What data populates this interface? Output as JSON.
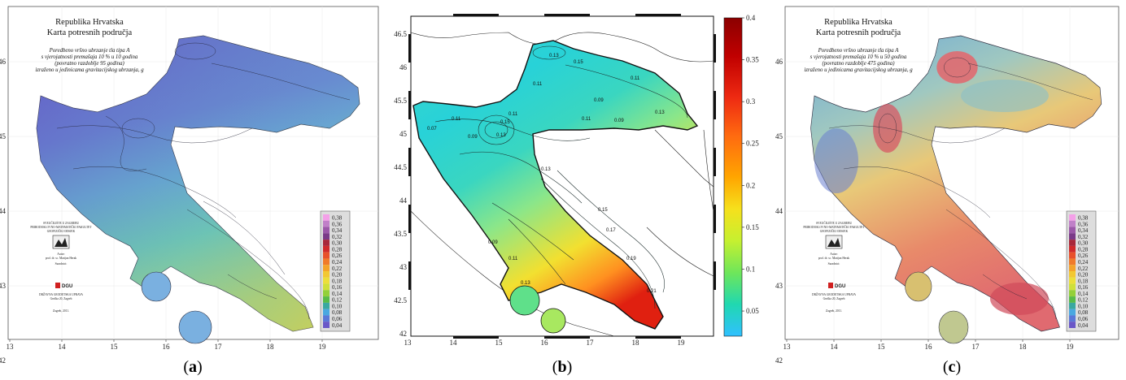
{
  "panels": [
    {
      "id": "a",
      "caption": "(a)",
      "title_lines": [
        "Republika Hrvatska",
        "Karta potresnih područja"
      ],
      "subtitle_lines": [
        "Poredbeno vršno ubrzanje tla tipa A",
        "s vjerojatnosti premašaja 10 % u 10 godina",
        "(povratno razdoblje 95 godina)",
        "izraženo u jedinicama gravitacijskog ubrzanja, g"
      ],
      "x_ticks": [
        "13",
        "14",
        "15",
        "16",
        "17",
        "18",
        "19"
      ],
      "y_ticks": [
        "46",
        "45",
        "44",
        "43",
        "42"
      ],
      "legend": [
        "0,38",
        "0,36",
        "0,34",
        "0,32",
        "0,30",
        "0,28",
        "0,26",
        "0,24",
        "0,22",
        "0,20",
        "0,18",
        "0,16",
        "0,14",
        "0,12",
        "0,10",
        "0,08",
        "0,06",
        "0,04"
      ]
    },
    {
      "id": "b",
      "caption": "(b)",
      "x_ticks": [
        "13",
        "14",
        "15",
        "16",
        "17",
        "18",
        "19"
      ],
      "y_ticks": [
        "46.5",
        "46",
        "45.5",
        "45",
        "44.5",
        "44",
        "43.5",
        "43",
        "42.5",
        "42"
      ],
      "colorbar_ticks": [
        "0.4",
        "0.35",
        "0.3",
        "0.25",
        "0.2",
        "0.15",
        "0.1",
        "0.05"
      ],
      "contour_labels": [
        "0.13",
        "0.15",
        "0.11",
        "0.09",
        "0.11",
        "0.13",
        "0.11",
        "0.09",
        "0.11",
        "0.13",
        "0.15",
        "0.07",
        "0.09",
        "0.11",
        "0.13",
        "0.15",
        "0.17",
        "0.19",
        "0.21",
        "0.13",
        "0.11",
        "0.09"
      ]
    },
    {
      "id": "c",
      "caption": "(c)",
      "title_lines": [
        "Republika Hrvatska",
        "Karta potresnih područja"
      ],
      "subtitle_lines": [
        "Poredbeno vršno ubrzanje tla tipa A",
        "s vjerojatnosti premašaja 10 % u 50 godina",
        "(povratno razdoblje 475 godina)",
        "izraženo u jedinicama gravitacijskog ubrzanja, g"
      ],
      "x_ticks": [
        "13",
        "14",
        "15",
        "16",
        "17",
        "18",
        "19"
      ],
      "y_ticks": [
        "46",
        "45",
        "44",
        "43",
        "42"
      ],
      "legend": [
        "0,38",
        "0,36",
        "0,34",
        "0,32",
        "0,30",
        "0,28",
        "0,26",
        "0,24",
        "0,22",
        "0,20",
        "0,18",
        "0,16",
        "0,14",
        "0,12",
        "0,10",
        "0,08",
        "0,06",
        "0,04"
      ]
    }
  ],
  "side_block": {
    "institute_lines": [
      "SVEUČILIŠTE U ZAGREBU",
      "PRIRODOSLOVNO-MATEMATIČKI FAKULTET",
      "GEOFIZIČKI ODSJEK"
    ],
    "author_head": "Autor:",
    "author": "prof. dr. sc. Marijan Herak",
    "collab_head": "Suradnici:",
    "logo_text": "DGU",
    "agency_lines": [
      "DRŽAVNA GEODETSKA UPRAVA",
      "Gruška 20, Zagreb"
    ],
    "date": "Zagreb, 2011."
  },
  "legend_colors": [
    "#f4a0e8",
    "#c080c8",
    "#9b58a8",
    "#7a3a88",
    "#a8283a",
    "#d02a2a",
    "#e8502a",
    "#f07a2a",
    "#f4a32a",
    "#f2c833",
    "#ecdf3a",
    "#cfe03a",
    "#93d03a",
    "#58bb48",
    "#3aa8a0",
    "#4aa8e0",
    "#5a78d8",
    "#6a58c8"
  ],
  "colorbar_colors": [
    "#8b0000",
    "#c00000",
    "#ee2a12",
    "#ff6a10",
    "#ffa500",
    "#f6e01c",
    "#c6f030",
    "#6fe65a",
    "#20d8b0",
    "#10d0f0",
    "#30c0ff"
  ]
}
